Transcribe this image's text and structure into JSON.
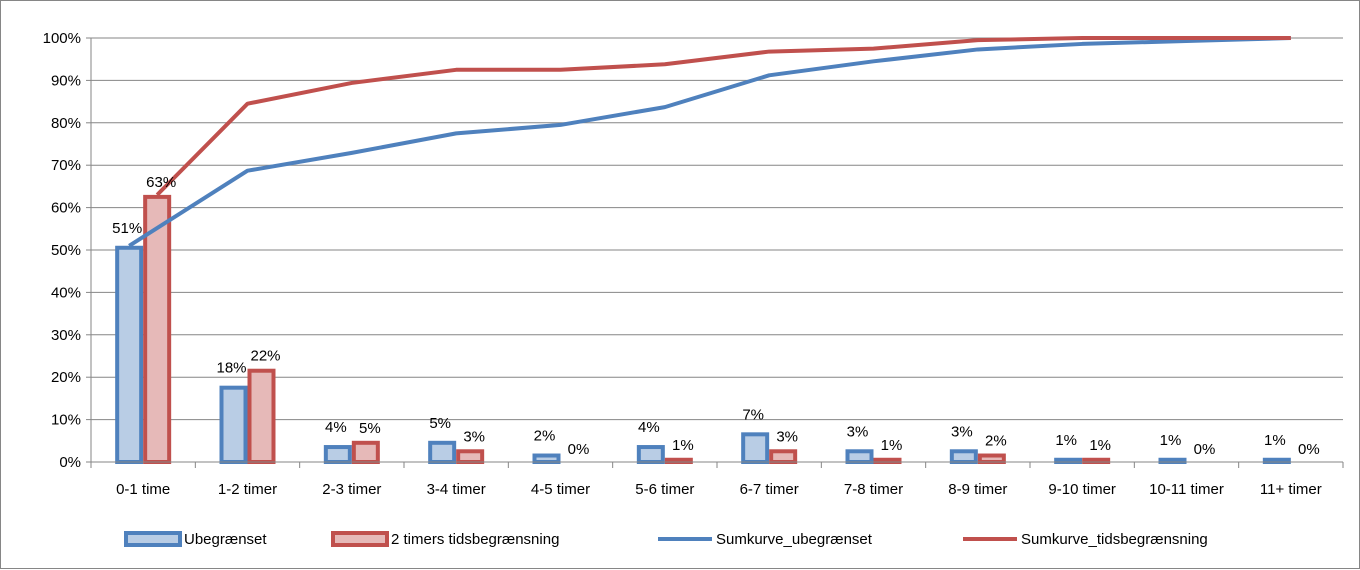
{
  "chart_data": {
    "type": "bar",
    "title": "",
    "xlabel": "",
    "ylabel": "",
    "categories": [
      "0-1 time",
      "1-2 timer",
      "2-3 timer",
      "3-4 timer",
      "4-5 timer",
      "5-6 timer",
      "6-7 timer",
      "7-8 timer",
      "8-9 timer",
      "9-10 timer",
      "10-11 timer",
      "11+ timer"
    ],
    "ylim": [
      0,
      100
    ],
    "yticks": [
      "0%",
      "10%",
      "20%",
      "30%",
      "40%",
      "50%",
      "60%",
      "70%",
      "80%",
      "90%",
      "100%"
    ],
    "grid": true,
    "legend_position": "bottom",
    "series": [
      {
        "name": "Ubegrænset",
        "kind": "bar",
        "color": "#4F81BD",
        "fill": "#B9CDE5",
        "values": [
          51,
          18,
          4,
          5,
          2,
          4,
          7,
          3,
          3,
          1,
          1,
          1
        ],
        "labels": [
          "51%",
          "18%",
          "4%",
          "5%",
          "2%",
          "4%",
          "7%",
          "3%",
          "3%",
          "1%",
          "1%",
          "1%"
        ]
      },
      {
        "name": "2 timers tidsbegrænsning",
        "kind": "bar",
        "color": "#C0504D",
        "fill": "#E6B9B8",
        "values": [
          63,
          22,
          5,
          3,
          0,
          1,
          3,
          1,
          2,
          1,
          0,
          0
        ],
        "labels": [
          "63%",
          "22%",
          "5%",
          "3%",
          "0%",
          "1%",
          "3%",
          "1%",
          "2%",
          "1%",
          "0%",
          "0%"
        ]
      },
      {
        "name": "Sumkurve_ubegrænset",
        "kind": "line",
        "color": "#4F81BD",
        "values": [
          51,
          68.7,
          72.9,
          77.5,
          79.5,
          83.7,
          91.2,
          94.5,
          97.3,
          98.6,
          99.3,
          100
        ]
      },
      {
        "name": "Sumkurve_tidsbegrænsning",
        "kind": "line",
        "color": "#C0504D",
        "values": [
          63,
          84.5,
          89.4,
          92.5,
          92.5,
          93.8,
          96.8,
          97.5,
          99.5,
          100,
          100,
          100
        ]
      }
    ]
  }
}
